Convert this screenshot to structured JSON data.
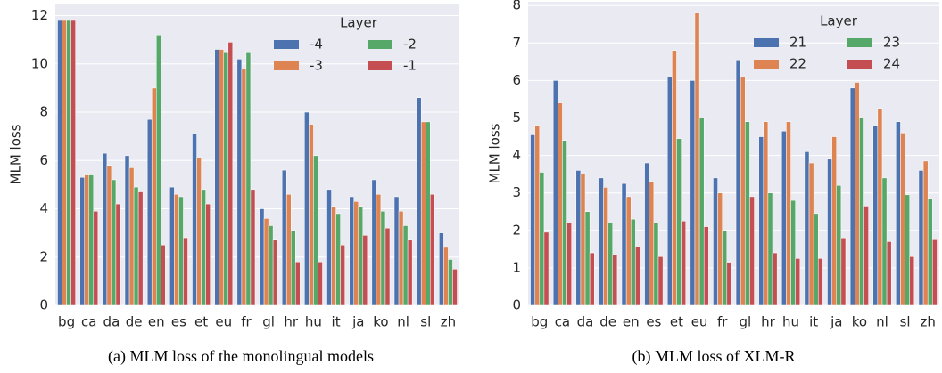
{
  "chart_data": [
    {
      "type": "bar",
      "caption": "(a) MLM loss of the monolingual models",
      "ylabel": "MLM loss",
      "legend_title": "Layer",
      "legend": "upper right",
      "grid": true,
      "categories": [
        "bg",
        "ca",
        "da",
        "de",
        "en",
        "es",
        "et",
        "eu",
        "fr",
        "gl",
        "hr",
        "hu",
        "it",
        "ja",
        "ko",
        "nl",
        "sl",
        "zh"
      ],
      "ylim": [
        0,
        12.5
      ],
      "yticks": [
        0,
        2,
        4,
        6,
        8,
        10,
        12
      ],
      "series": [
        {
          "name": "-4",
          "color": "#4c72b0",
          "values": [
            11.8,
            5.3,
            6.3,
            6.2,
            7.7,
            4.9,
            7.1,
            10.6,
            10.2,
            4.0,
            5.6,
            8.0,
            4.8,
            4.5,
            5.2,
            4.5,
            8.6,
            3.0
          ]
        },
        {
          "name": "-3",
          "color": "#dd8452",
          "values": [
            11.8,
            5.4,
            5.8,
            5.7,
            9.0,
            4.6,
            6.1,
            10.6,
            9.8,
            3.6,
            4.6,
            7.5,
            4.1,
            4.3,
            4.6,
            3.9,
            7.6,
            2.4
          ]
        },
        {
          "name": "-2",
          "color": "#55a868",
          "values": [
            11.8,
            5.4,
            5.2,
            4.9,
            11.2,
            4.5,
            4.8,
            10.5,
            10.5,
            3.3,
            3.1,
            6.2,
            3.8,
            4.1,
            3.9,
            3.3,
            7.6,
            1.9
          ]
        },
        {
          "name": "-1",
          "color": "#c44e52",
          "values": [
            11.8,
            3.9,
            4.2,
            4.7,
            2.5,
            2.8,
            4.2,
            10.9,
            4.8,
            2.7,
            1.8,
            1.8,
            2.5,
            2.9,
            3.2,
            2.7,
            4.6,
            1.5
          ]
        }
      ]
    },
    {
      "type": "bar",
      "caption": "(b) MLM loss of XLM-R",
      "ylabel": "MLM loss",
      "legend_title": "Layer",
      "legend": "upper right",
      "grid": true,
      "categories": [
        "bg",
        "ca",
        "da",
        "de",
        "en",
        "es",
        "et",
        "eu",
        "fr",
        "gl",
        "hr",
        "hu",
        "it",
        "ja",
        "ko",
        "nl",
        "sl",
        "zh"
      ],
      "ylim": [
        0,
        8.1
      ],
      "yticks": [
        0,
        1,
        2,
        3,
        4,
        5,
        6,
        7,
        8
      ],
      "series": [
        {
          "name": "21",
          "color": "#4c72b0",
          "values": [
            4.55,
            6.0,
            3.6,
            3.4,
            3.25,
            3.8,
            6.1,
            6.0,
            3.4,
            6.55,
            4.5,
            4.65,
            4.1,
            3.9,
            5.8,
            4.8,
            4.9,
            3.6
          ]
        },
        {
          "name": "22",
          "color": "#dd8452",
          "values": [
            4.8,
            5.4,
            3.5,
            3.15,
            2.9,
            3.3,
            6.8,
            7.8,
            3.0,
            6.1,
            4.9,
            4.9,
            3.8,
            4.5,
            5.95,
            5.25,
            4.6,
            3.85
          ]
        },
        {
          "name": "23",
          "color": "#55a868",
          "values": [
            3.55,
            4.4,
            2.5,
            2.2,
            2.3,
            2.2,
            4.45,
            5.0,
            2.0,
            4.9,
            3.0,
            2.8,
            2.45,
            3.2,
            5.0,
            3.4,
            2.95,
            2.85
          ]
        },
        {
          "name": "24",
          "color": "#c44e52",
          "values": [
            1.95,
            2.2,
            1.4,
            1.35,
            1.55,
            1.3,
            2.25,
            2.1,
            1.15,
            2.9,
            1.4,
            1.25,
            1.25,
            1.8,
            2.65,
            1.7,
            1.3,
            1.75
          ]
        }
      ]
    }
  ]
}
